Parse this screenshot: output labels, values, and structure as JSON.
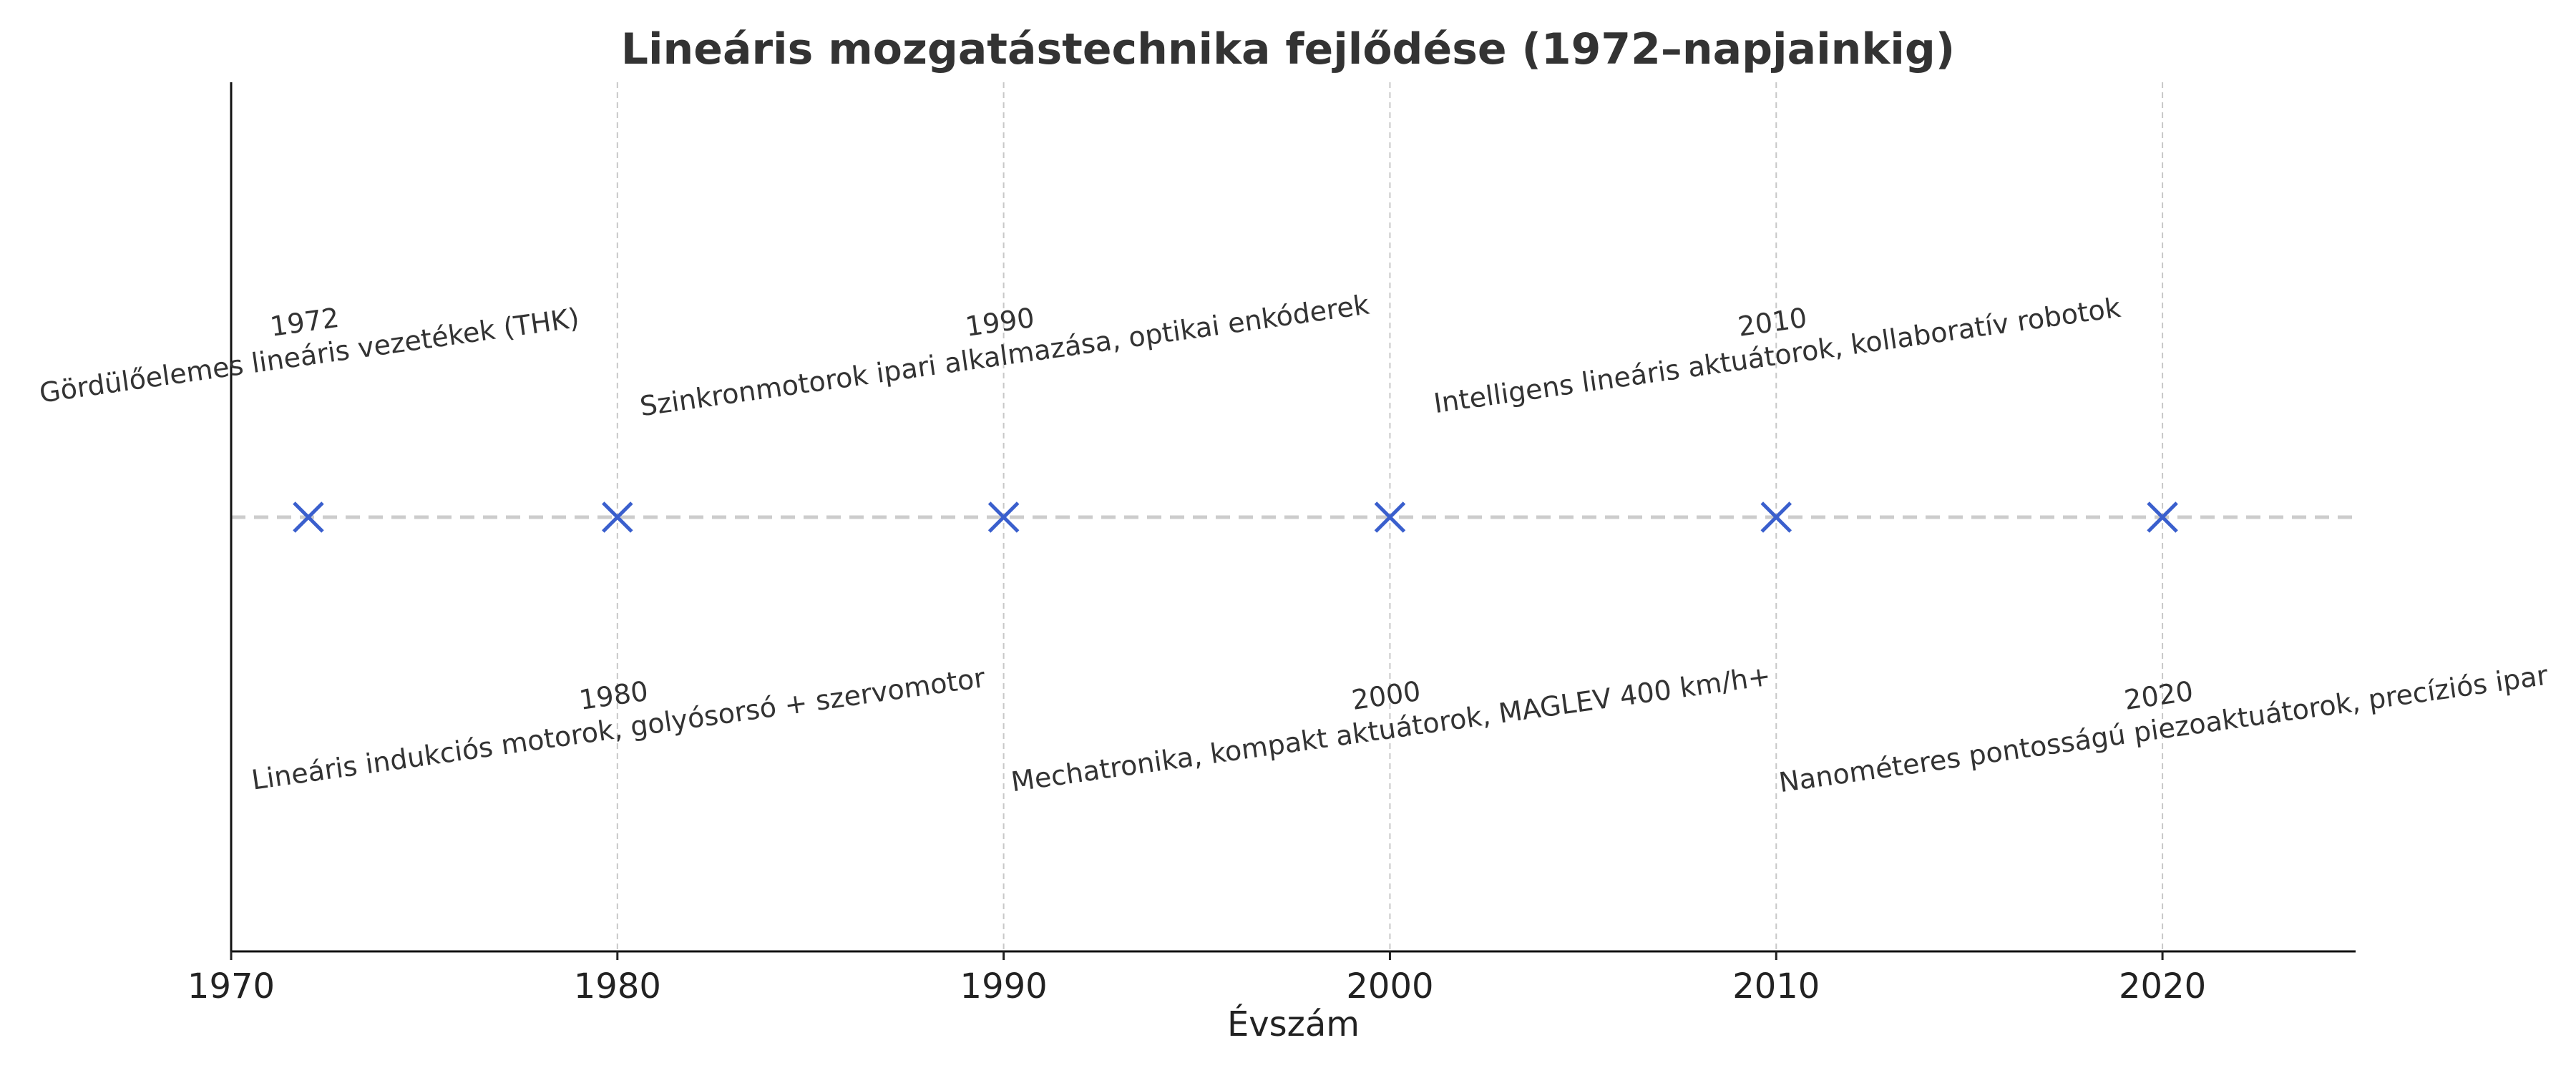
{
  "chart_data": {
    "type": "scatter",
    "title": "Lineáris mozgatástechnika fejlődése (1972–napjainkig)",
    "xlabel": "Évszám",
    "ylabel": "",
    "xlim": [
      1970,
      2025
    ],
    "x_ticks": [
      1970,
      1980,
      1990,
      2000,
      2010,
      2020
    ],
    "grid": "vertical dashed at ticks",
    "marker": "x",
    "marker_color": "#3a5fcd",
    "baseline_color": "#cccccc",
    "events": [
      {
        "year": 1972,
        "label": "1972",
        "text": "Gördülőelemes lineáris vezetékek (THK)",
        "position": "above"
      },
      {
        "year": 1980,
        "label": "1980",
        "text": "Lineáris indukciós motorok, golyósorsó + szervomotor",
        "position": "below"
      },
      {
        "year": 1990,
        "label": "1990",
        "text": "Szinkronmotorok ipari alkalmazása, optikai enkóderek",
        "position": "above"
      },
      {
        "year": 2000,
        "label": "2000",
        "text": "Mechatronika, kompakt aktuátorok, MAGLEV 400 km/h+",
        "position": "below"
      },
      {
        "year": 2010,
        "label": "2010",
        "text": "Intelligens lineáris aktuátorok, kollaboratív robotok",
        "position": "above"
      },
      {
        "year": 2020,
        "label": "2020",
        "text": "Nanométeres pontosságú piezoaktuátorok, precíziós ipar",
        "position": "below"
      }
    ]
  }
}
